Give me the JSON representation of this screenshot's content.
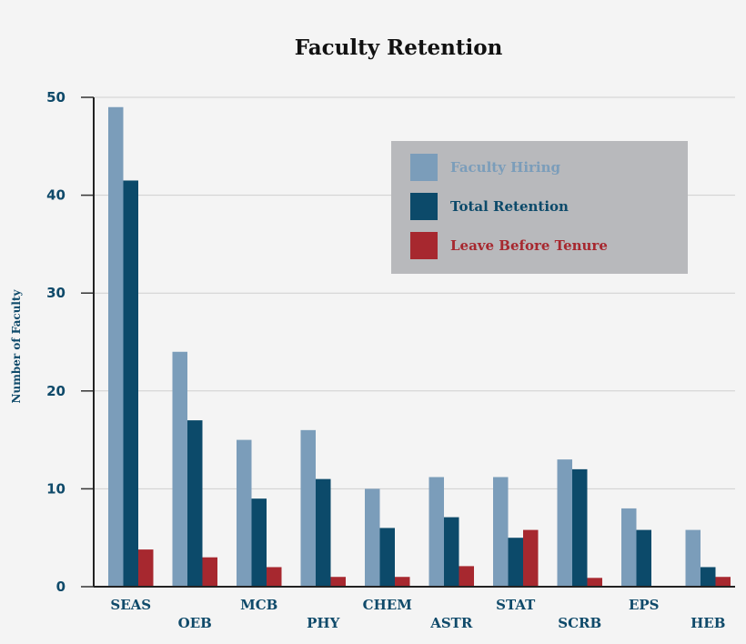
{
  "chart_data": {
    "type": "bar",
    "title": "Faculty Retention",
    "ylabel": "Number of Faculty",
    "xlabel": "",
    "ylim": [
      0,
      50
    ],
    "yticks": [
      0,
      10,
      20,
      30,
      40,
      50
    ],
    "grid": true,
    "legend_position": "top-right",
    "categories": [
      "SEAS",
      "OEB",
      "MCB",
      "PHY",
      "CHEM",
      "ASTR",
      "STAT",
      "SCRB",
      "EPS",
      "HEB"
    ],
    "series": [
      {
        "name": "Faculty Hiring",
        "color": "#7b9dba",
        "values": [
          49,
          24,
          15,
          16,
          10,
          11.2,
          11.2,
          13,
          8,
          5.8
        ]
      },
      {
        "name": "Total Retention",
        "color": "#0c4a6a",
        "values": [
          41.5,
          17,
          9,
          11,
          6,
          7.1,
          5,
          12,
          5.8,
          2
        ]
      },
      {
        "name": "Leave Before Tenure",
        "color": "#a7282f",
        "values": [
          3.8,
          3,
          2,
          1,
          1,
          2.1,
          5.8,
          0.9,
          0,
          1
        ]
      }
    ]
  }
}
